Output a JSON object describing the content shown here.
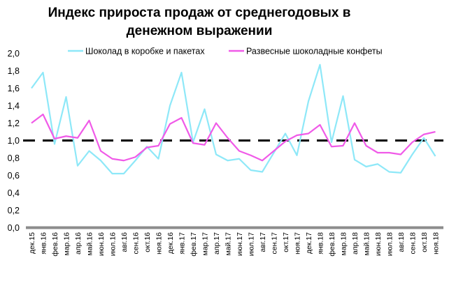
{
  "chart_data": {
    "type": "line",
    "title": [
      "Индекс прироста продаж от среднегодовых в",
      "денежном выражении"
    ],
    "xlabel": "",
    "ylabel": "",
    "ylim": [
      0,
      2.0
    ],
    "yticks": [
      "0,0",
      "0,2",
      "0,4",
      "0,6",
      "0,8",
      "1,0",
      "1,2",
      "1,4",
      "1,6",
      "1,8",
      "2,0"
    ],
    "reference_line": {
      "value": 1.0,
      "style": "dashed",
      "color": "#000000"
    },
    "legend_position": "top",
    "categories": [
      "дек.15",
      "янв.16",
      "фев.16",
      "мар.16",
      "апр.16",
      "май.16",
      "июн.16",
      "июл.16",
      "авг.16",
      "сен.16",
      "окт.16",
      "ноя.16",
      "дек.16",
      "янв.17",
      "фев.17",
      "мар.17",
      "апр.17",
      "май.17",
      "июн.17",
      "июл.17",
      "авг.17",
      "сен.17",
      "окт.17",
      "ноя.17",
      "дек.17",
      "янв.18",
      "фев.18",
      "мар.18",
      "апр.18",
      "май.18",
      "июн.18",
      "июл.18",
      "авг.18",
      "сен.18",
      "окт.18",
      "ноя.18"
    ],
    "series": [
      {
        "name": "Шоколад в коробке и пакетах",
        "color": "#8ee8f8",
        "values": [
          1.6,
          1.78,
          0.96,
          1.5,
          0.71,
          0.88,
          0.77,
          0.62,
          0.62,
          0.77,
          0.93,
          0.79,
          1.4,
          1.78,
          0.98,
          1.36,
          0.84,
          0.77,
          0.79,
          0.66,
          0.64,
          0.86,
          1.08,
          0.83,
          1.45,
          1.87,
          0.98,
          1.51,
          0.78,
          0.7,
          0.73,
          0.64,
          0.63,
          0.84,
          1.03,
          0.82
        ]
      },
      {
        "name": "Развесные шоколадные конфеты",
        "color": "#f05ae8",
        "values": [
          1.2,
          1.3,
          1.02,
          1.05,
          1.03,
          1.23,
          0.88,
          0.79,
          0.77,
          0.81,
          0.92,
          0.94,
          1.19,
          1.26,
          0.97,
          0.95,
          1.2,
          1.03,
          0.88,
          0.83,
          0.77,
          0.88,
          0.99,
          1.06,
          1.08,
          1.18,
          0.93,
          0.94,
          1.2,
          0.94,
          0.86,
          0.86,
          0.84,
          0.98,
          1.07,
          1.1
        ]
      }
    ]
  }
}
